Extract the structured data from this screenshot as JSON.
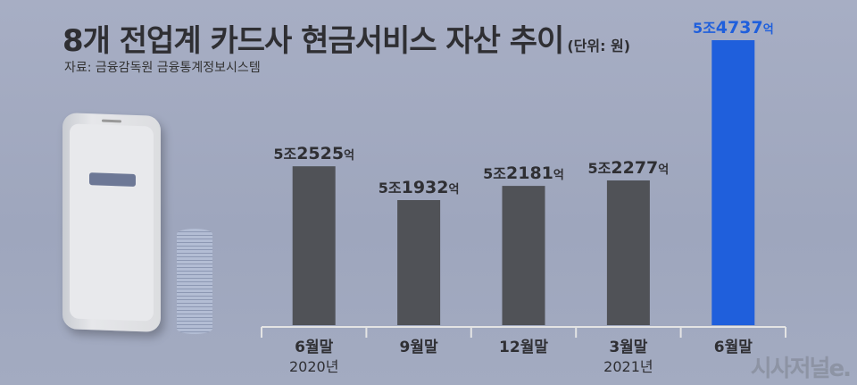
{
  "title": "8개 전업계 카드사 현금서비스 자산 추이",
  "unit": "(단위: 원)",
  "source": "자료: 금융감독원 금융통계정보시스템",
  "watermark": "시사저널e.",
  "chart_data": {
    "type": "bar",
    "categories": [
      "6월말",
      "9월말",
      "12월말",
      "3월말",
      "6월말"
    ],
    "year_labels": [
      "2020년",
      "",
      "",
      "2021년",
      ""
    ],
    "values": [
      52525,
      51932,
      52181,
      52277,
      54737
    ],
    "value_unit": "억원",
    "data_labels": [
      {
        "prefix": "5조",
        "num": "2525",
        "suffix": "억"
      },
      {
        "prefix": "5조",
        "num": "1932",
        "suffix": "억"
      },
      {
        "prefix": "5조",
        "num": "2181",
        "suffix": "억"
      },
      {
        "prefix": "5조",
        "num": "2277",
        "suffix": "억"
      },
      {
        "prefix": "5조",
        "num": "4737",
        "suffix": "억"
      }
    ],
    "colors": [
      "#505257",
      "#505257",
      "#505257",
      "#505257",
      "#1f5fdc"
    ],
    "label_colors": [
      "#2f2f33",
      "#2f2f33",
      "#2f2f33",
      "#2f2f33",
      "#1f5fdc"
    ],
    "grid": false
  }
}
